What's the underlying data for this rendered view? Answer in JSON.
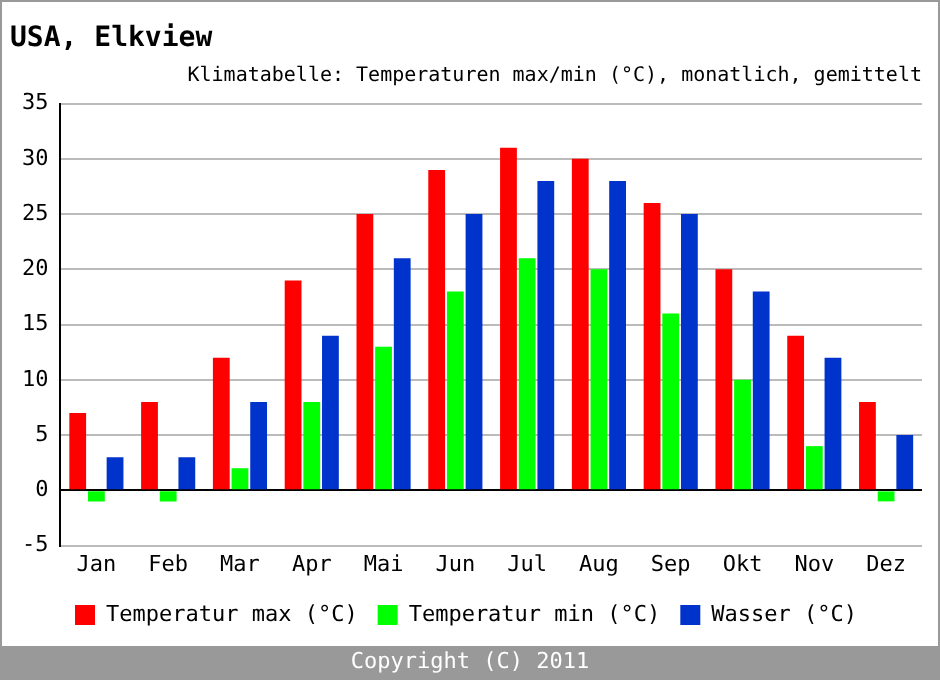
{
  "chart_data": {
    "type": "bar",
    "title": "USA, Elkview",
    "subtitle": "Klimatabelle: Temperaturen max/min (°C), monatlich, gemittelt",
    "categories": [
      "Jan",
      "Feb",
      "Mar",
      "Apr",
      "Mai",
      "Jun",
      "Jul",
      "Aug",
      "Sep",
      "Okt",
      "Nov",
      "Dez"
    ],
    "series": [
      {
        "name": "Temperatur max (°C)",
        "color": "#ff0000",
        "values": [
          7,
          8,
          12,
          19,
          25,
          29,
          31,
          30,
          26,
          20,
          14,
          8
        ]
      },
      {
        "name": "Temperatur min (°C)",
        "color": "#00ff00",
        "values": [
          -1,
          -1,
          2,
          8,
          13,
          18,
          21,
          20,
          16,
          10,
          4,
          -1
        ]
      },
      {
        "name": "Wasser (°C)",
        "color": "#0033cc",
        "values": [
          3,
          3,
          8,
          14,
          21,
          25,
          28,
          28,
          25,
          18,
          12,
          5
        ]
      }
    ],
    "ylim": [
      -5,
      35
    ],
    "yticks": [
      -5,
      0,
      5,
      10,
      15,
      20,
      25,
      30,
      35
    ],
    "grid": "y",
    "legend": "bottom",
    "annotations": [
      "Copyright (C) 2011"
    ]
  }
}
